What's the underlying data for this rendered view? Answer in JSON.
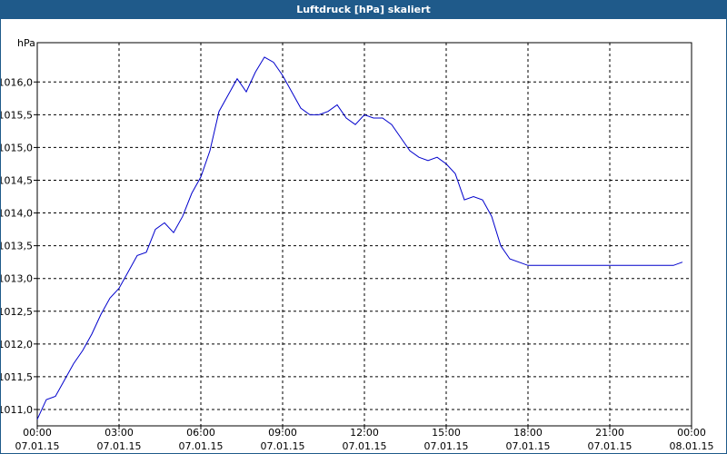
{
  "window": {
    "title": "Luftdruck [hPa] skaliert"
  },
  "colors": {
    "titlebar": "#1f5a8a",
    "line": "#0000cc",
    "grid": "#000000"
  },
  "chart_data": {
    "type": "line",
    "title": "Luftdruck [hPa] skaliert",
    "ylabel": "hPa",
    "xlabel": "",
    "ylim": [
      1010.75,
      1016.6
    ],
    "xlim": [
      "07.01.15 00:00",
      "08.01.15 00:00"
    ],
    "grid": true,
    "yticks": [
      "1011,0",
      "1011,5",
      "1012,0",
      "1012,5",
      "1013,0",
      "1013,5",
      "1014,0",
      "1014,5",
      "1015,0",
      "1015,5",
      "1016,0"
    ],
    "ytick_values": [
      1011.0,
      1011.5,
      1012.0,
      1012.5,
      1013.0,
      1013.5,
      1014.0,
      1014.5,
      1015.0,
      1015.5,
      1016.0
    ],
    "xticks": [
      {
        "time": "00:00",
        "date": "07.01.15"
      },
      {
        "time": "03:00",
        "date": "07.01.15"
      },
      {
        "time": "06:00",
        "date": "07.01.15"
      },
      {
        "time": "09:00",
        "date": "07.01.15"
      },
      {
        "time": "12:00",
        "date": "07.01.15"
      },
      {
        "time": "15:00",
        "date": "07.01.15"
      },
      {
        "time": "18:00",
        "date": "07.01.15"
      },
      {
        "time": "21:00",
        "date": "07.01.15"
      },
      {
        "time": "00:00",
        "date": "08.01.15"
      }
    ],
    "series": [
      {
        "x": [
          "00:00",
          "00:20",
          "00:40",
          "01:00",
          "01:20",
          "01:40",
          "02:00",
          "02:20",
          "02:40",
          "03:00",
          "03:20",
          "03:40",
          "04:00",
          "04:20",
          "04:40",
          "05:00",
          "05:20",
          "05:40",
          "06:00",
          "06:20",
          "06:40",
          "07:00",
          "07:20",
          "07:40",
          "08:00",
          "08:20",
          "08:40",
          "09:00",
          "09:20",
          "09:40",
          "10:00",
          "10:20",
          "10:40",
          "11:00",
          "11:20",
          "11:40",
          "12:00",
          "12:20",
          "12:40",
          "13:00",
          "13:20",
          "13:40",
          "14:00",
          "14:20",
          "14:40",
          "15:00",
          "15:20",
          "15:40",
          "16:00",
          "16:20",
          "16:40",
          "17:00",
          "17:20",
          "17:40",
          "18:00",
          "18:20",
          "18:40",
          "19:00",
          "19:20",
          "19:40",
          "20:00",
          "20:20",
          "20:40",
          "21:00",
          "21:20",
          "21:40",
          "22:00",
          "22:20",
          "22:40",
          "23:00",
          "23:20",
          "23:40"
        ],
        "values": [
          1010.85,
          1011.15,
          1011.2,
          1011.45,
          1011.7,
          1011.9,
          1012.15,
          1012.45,
          1012.7,
          1012.85,
          1013.1,
          1013.35,
          1013.4,
          1013.75,
          1013.85,
          1013.7,
          1013.95,
          1014.3,
          1014.55,
          1014.95,
          1015.55,
          1015.8,
          1016.05,
          1015.85,
          1016.15,
          1016.38,
          1016.3,
          1016.1,
          1015.85,
          1015.6,
          1015.5,
          1015.5,
          1015.55,
          1015.65,
          1015.45,
          1015.35,
          1015.5,
          1015.45,
          1015.45,
          1015.35,
          1015.15,
          1014.95,
          1014.85,
          1014.8,
          1014.85,
          1014.75,
          1014.6,
          1014.2,
          1014.25,
          1014.2,
          1013.95,
          1013.5,
          1013.3,
          1013.25,
          1013.2,
          1013.2,
          1013.2,
          1013.2,
          1013.2,
          1013.2,
          1013.2,
          1013.2,
          1013.2,
          1013.2,
          1013.2,
          1013.2,
          1013.2,
          1013.2,
          1013.2,
          1013.2,
          1013.2,
          1013.25
        ]
      }
    ]
  }
}
